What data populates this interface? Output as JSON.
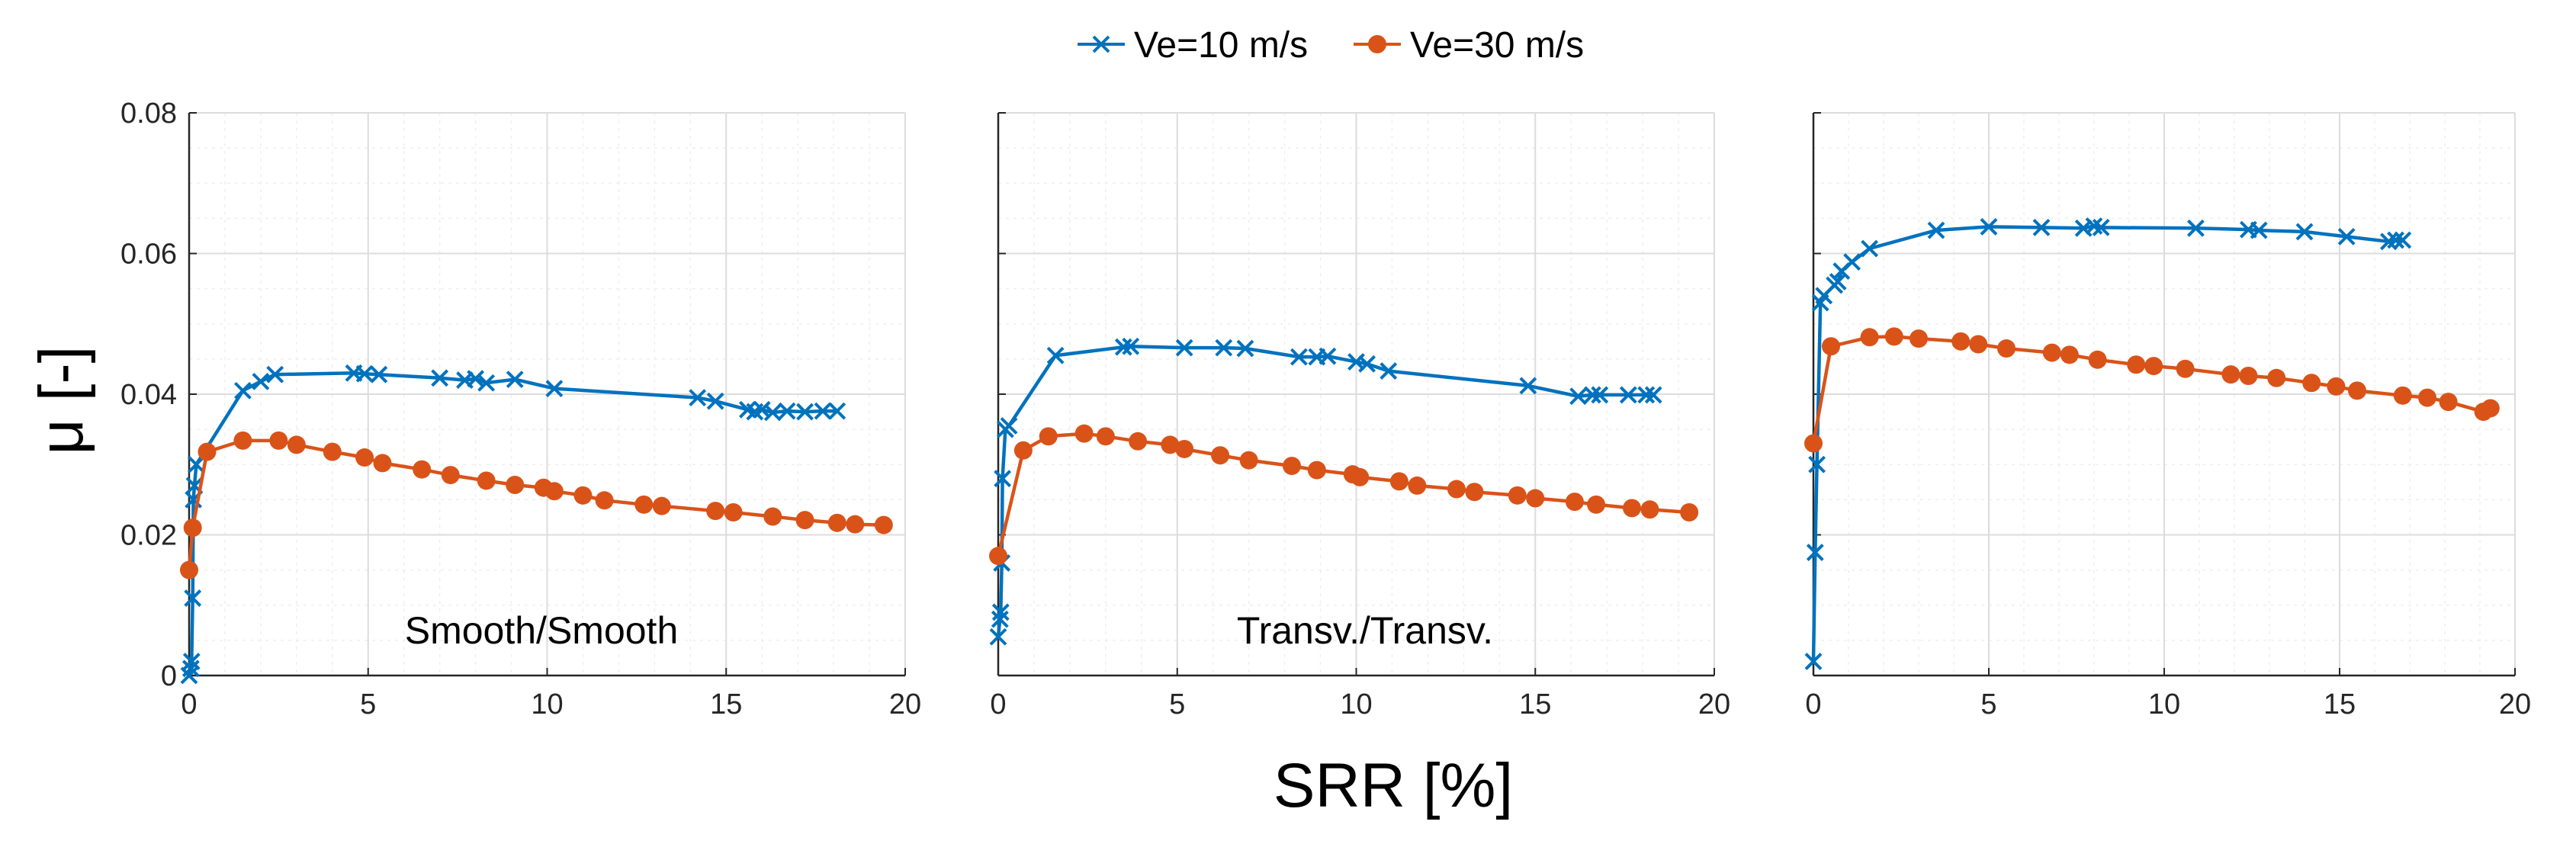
{
  "chart_data": {
    "type": "line",
    "xlabel": "SRR [%]",
    "ylabel": "μ [-]",
    "xlim": [
      0,
      20
    ],
    "ylim": [
      0,
      0.08
    ],
    "x_ticks": [
      "0",
      "5",
      "10",
      "15",
      "20"
    ],
    "y_ticks": [
      "0",
      "0.02",
      "0.04",
      "0.06",
      "0.08"
    ],
    "grid": true,
    "minor_grid": true,
    "legend": {
      "placement": "top-center",
      "entries": [
        "Ve=10 m/s",
        "Ve=30 m/s"
      ]
    },
    "series_colors": {
      "ve10": "#0072BD",
      "ve30": "#D95319"
    },
    "series_markers": {
      "ve10": "x-marker",
      "ve30": "circle-marker"
    },
    "panels": [
      {
        "label": "Smooth/Smooth",
        "series": [
          {
            "name": "Ve=10 m/s",
            "x": [
              0.0,
              0.05,
              0.07,
              0.1,
              0.12,
              0.15,
              0.2,
              1.5,
              2.0,
              2.4,
              4.6,
              4.9,
              5.3,
              7.0,
              7.7,
              8.0,
              8.3,
              9.1,
              10.2,
              14.2,
              14.7,
              15.6,
              15.8,
              16.0,
              16.3,
              16.7,
              17.2,
              17.7,
              18.1
            ],
            "y": [
              0.0,
              0.001,
              0.002,
              0.011,
              0.025,
              0.027,
              0.03,
              0.0405,
              0.0418,
              0.0428,
              0.043,
              0.0429,
              0.0428,
              0.0423,
              0.042,
              0.0422,
              0.0416,
              0.0421,
              0.0408,
              0.0395,
              0.039,
              0.0378,
              0.0375,
              0.0378,
              0.0374,
              0.0376,
              0.0375,
              0.0376,
              0.0376
            ]
          },
          {
            "name": "Ve=30 m/s",
            "x": [
              0.0,
              0.1,
              0.5,
              1.5,
              2.5,
              3.0,
              4.0,
              4.9,
              5.4,
              6.5,
              7.3,
              8.3,
              9.1,
              9.9,
              10.2,
              11.0,
              11.6,
              12.7,
              13.2,
              14.7,
              15.2,
              16.3,
              17.2,
              18.1,
              18.6,
              19.4
            ],
            "y": [
              0.015,
              0.021,
              0.0318,
              0.0334,
              0.0334,
              0.0328,
              0.0318,
              0.031,
              0.0302,
              0.0293,
              0.0285,
              0.0277,
              0.0271,
              0.0267,
              0.0262,
              0.0256,
              0.0249,
              0.0243,
              0.0241,
              0.0234,
              0.0232,
              0.0226,
              0.0221,
              0.0217,
              0.0215,
              0.0214
            ]
          }
        ]
      },
      {
        "label": "Transv./Transv.",
        "series": [
          {
            "name": "Ve=10 m/s",
            "x": [
              0.0,
              0.05,
              0.07,
              0.1,
              0.12,
              0.2,
              0.3,
              1.6,
              3.5,
              3.7,
              5.2,
              6.3,
              6.9,
              8.4,
              8.9,
              9.2,
              10.0,
              10.3,
              10.9,
              14.8,
              16.2,
              16.6,
              16.8,
              17.6,
              18.1,
              18.3
            ],
            "y": [
              0.0055,
              0.008,
              0.009,
              0.016,
              0.028,
              0.035,
              0.0355,
              0.0455,
              0.0467,
              0.0468,
              0.0466,
              0.0466,
              0.0465,
              0.0453,
              0.0453,
              0.0454,
              0.0446,
              0.0443,
              0.0433,
              0.0412,
              0.0397,
              0.0399,
              0.0399,
              0.0399,
              0.0399,
              0.0399
            ]
          },
          {
            "name": "Ve=30 m/s",
            "x": [
              0.0,
              0.7,
              1.4,
              2.4,
              3.0,
              3.9,
              4.8,
              5.2,
              6.2,
              7.0,
              8.2,
              8.9,
              9.9,
              10.1,
              11.2,
              11.7,
              12.8,
              13.3,
              14.5,
              15.0,
              16.1,
              16.7,
              17.7,
              18.2,
              19.3
            ],
            "y": [
              0.017,
              0.032,
              0.034,
              0.0344,
              0.034,
              0.0333,
              0.0328,
              0.0322,
              0.0313,
              0.0306,
              0.0298,
              0.0292,
              0.0286,
              0.0282,
              0.0276,
              0.027,
              0.0265,
              0.0261,
              0.0256,
              0.0252,
              0.0247,
              0.0243,
              0.0238,
              0.0236,
              0.0232
            ]
          }
        ]
      },
      {
        "label": "",
        "series": [
          {
            "name": "Ve=10 m/s",
            "x": [
              0.0,
              0.05,
              0.1,
              0.2,
              0.3,
              0.6,
              0.7,
              0.8,
              1.1,
              1.6,
              3.5,
              5.0,
              6.5,
              7.7,
              8.0,
              8.2,
              10.9,
              12.4,
              12.7,
              14.0,
              15.2,
              16.4,
              16.6,
              16.8
            ],
            "y": [
              0.002,
              0.0175,
              0.03,
              0.053,
              0.054,
              0.0555,
              0.056,
              0.0575,
              0.0588,
              0.0607,
              0.0633,
              0.0638,
              0.0637,
              0.0636,
              0.0639,
              0.0637,
              0.0636,
              0.0634,
              0.0633,
              0.0631,
              0.0624,
              0.0617,
              0.0619,
              0.0619
            ]
          },
          {
            "name": "Ve=30 m/s",
            "x": [
              0.0,
              0.5,
              1.6,
              2.3,
              3.0,
              4.2,
              4.7,
              5.5,
              6.8,
              7.3,
              8.1,
              9.2,
              9.7,
              10.6,
              11.9,
              12.4,
              13.2,
              14.2,
              14.9,
              15.5,
              16.8,
              17.5,
              18.1,
              19.1,
              19.3
            ],
            "y": [
              0.033,
              0.0468,
              0.0481,
              0.0482,
              0.0479,
              0.0475,
              0.0471,
              0.0465,
              0.0459,
              0.0456,
              0.0449,
              0.0442,
              0.044,
              0.0436,
              0.0428,
              0.0426,
              0.0423,
              0.0416,
              0.0411,
              0.0405,
              0.0398,
              0.0395,
              0.0389,
              0.0375,
              0.038
            ]
          }
        ]
      }
    ]
  }
}
